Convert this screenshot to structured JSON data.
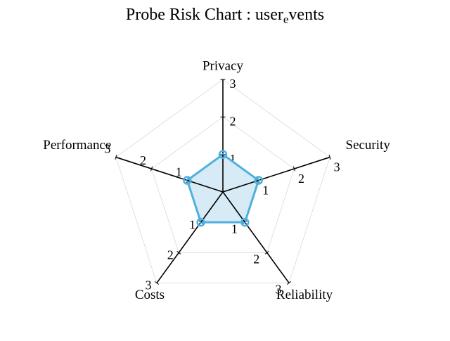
{
  "chart_data": {
    "type": "radar",
    "title": {
      "before": "Probe Risk Chart : user",
      "subscript": "e",
      "after": "vents"
    },
    "axes": [
      "Privacy",
      "Security",
      "Reliability",
      "Costs",
      "Performance"
    ],
    "rlim": [
      0,
      3
    ],
    "ticks": [
      "1",
      "2",
      "3"
    ],
    "series": [
      {
        "values": [
          1,
          1,
          1,
          1,
          1
        ],
        "color": "#4fb0de",
        "fill": "#d6ebf6"
      }
    ],
    "grid": true,
    "grid_color": "#d9d9d9",
    "axis_color": "#000000"
  }
}
